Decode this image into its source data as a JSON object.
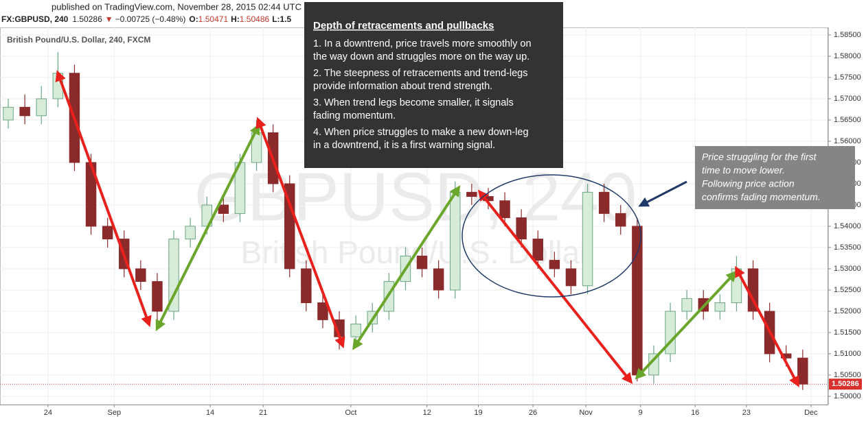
{
  "header": {
    "published": "published on TradingView.com, November 28, 2015 02:44 UTC",
    "symbol": "FX:GBPUSD, 240",
    "last": "1.50286",
    "change_arrow": "▼",
    "change": "−0.00725 (−0.48%)",
    "open_label": "O:",
    "open": "1.50471",
    "high_label": "H:",
    "high": "1.50486",
    "low_label": "L:1.5"
  },
  "chart_data": {
    "type": "candlestick",
    "title": "British Pound/U.S. Dollar, 240, FXCM",
    "watermark": "GBPUSD, 240",
    "watermark_subtitle": "British Pound/U.S. Dollar",
    "open": [
      1.565,
      1.568,
      1.566,
      1.57,
      1.576,
      1.555,
      1.54,
      1.537,
      1.53,
      1.527,
      1.52,
      1.537,
      1.54,
      1.545,
      1.543,
      1.555,
      1.562,
      1.55,
      1.53,
      1.522,
      1.518,
      1.514,
      1.517,
      1.52,
      1.527,
      1.533,
      1.53,
      1.525,
      1.548,
      1.547,
      1.546,
      1.542,
      1.537,
      1.532,
      1.53,
      1.526,
      1.548,
      1.543,
      1.54,
      1.505,
      1.51,
      1.52,
      1.523,
      1.52,
      1.522,
      1.53,
      1.52,
      1.51,
      1.509
    ],
    "high": [
      1.57,
      1.571,
      1.573,
      1.581,
      1.578,
      1.557,
      1.542,
      1.539,
      1.532,
      1.529,
      1.539,
      1.542,
      1.547,
      1.547,
      1.557,
      1.565,
      1.564,
      1.552,
      1.532,
      1.524,
      1.52,
      1.519,
      1.522,
      1.529,
      1.535,
      1.535,
      1.532,
      1.5505,
      1.55,
      1.549,
      1.548,
      1.544,
      1.539,
      1.534,
      1.532,
      1.55,
      1.55,
      1.545,
      1.542,
      1.512,
      1.522,
      1.525,
      1.525,
      1.524,
      1.533,
      1.532,
      1.522,
      1.512,
      1.511
    ],
    "low": [
      1.563,
      1.564,
      1.564,
      1.568,
      1.553,
      1.538,
      1.535,
      1.528,
      1.525,
      1.5165,
      1.518,
      1.535,
      1.538,
      1.541,
      1.541,
      1.553,
      1.548,
      1.528,
      1.52,
      1.516,
      1.511,
      1.512,
      1.515,
      1.518,
      1.525,
      1.528,
      1.523,
      1.523,
      1.545,
      1.544,
      1.54,
      1.535,
      1.53,
      1.528,
      1.524,
      1.524,
      1.541,
      1.538,
      1.5035,
      1.503,
      1.508,
      1.518,
      1.518,
      1.518,
      1.52,
      1.518,
      1.508,
      1.507,
      1.5015
    ],
    "close": [
      1.568,
      1.566,
      1.57,
      1.576,
      1.555,
      1.54,
      1.537,
      1.53,
      1.527,
      1.52,
      1.537,
      1.54,
      1.545,
      1.543,
      1.555,
      1.562,
      1.55,
      1.53,
      1.522,
      1.518,
      1.514,
      1.517,
      1.52,
      1.527,
      1.533,
      1.53,
      1.525,
      1.548,
      1.547,
      1.546,
      1.542,
      1.537,
      1.532,
      1.53,
      1.526,
      1.548,
      1.543,
      1.54,
      1.505,
      1.51,
      1.52,
      1.523,
      1.52,
      1.522,
      1.53,
      1.52,
      1.51,
      1.509,
      1.50286
    ],
    "up_color": "#6ba583",
    "down_color": "#8b2a2a",
    "xlim": [
      -0.5,
      49.5
    ],
    "xticks": [
      {
        "value": 2.4,
        "label": "24"
      },
      {
        "value": 6.4,
        "label": "Sep"
      },
      {
        "value": 12.2,
        "label": "14"
      },
      {
        "value": 15.4,
        "label": "21"
      },
      {
        "value": 20.7,
        "label": "Oct"
      },
      {
        "value": 25.3,
        "label": "12"
      },
      {
        "value": 28.4,
        "label": "19"
      },
      {
        "value": 31.7,
        "label": "26"
      },
      {
        "value": 34.9,
        "label": "Nov"
      },
      {
        "value": 38.2,
        "label": "9"
      },
      {
        "value": 41.5,
        "label": "16"
      },
      {
        "value": 44.6,
        "label": "23"
      },
      {
        "value": 48.5,
        "label": "Dec"
      }
    ],
    "ylim": [
      1.49806,
      1.58677
    ],
    "yticks": [
      {
        "value": 1.5,
        "label": "1.50000"
      },
      {
        "value": 1.505,
        "label": "1.50500"
      },
      {
        "value": 1.51,
        "label": "1.51000"
      },
      {
        "value": 1.515,
        "label": "1.51500"
      },
      {
        "value": 1.52,
        "label": "1.52000"
      },
      {
        "value": 1.525,
        "label": "1.52500"
      },
      {
        "value": 1.53,
        "label": "1.53000"
      },
      {
        "value": 1.535,
        "label": "1.53500"
      },
      {
        "value": 1.54,
        "label": "1.54000"
      },
      {
        "value": 1.545,
        "label": "1.54500"
      },
      {
        "value": 1.55,
        "label": "1.55000"
      },
      {
        "value": 1.555,
        "label": "1.55500"
      },
      {
        "value": 1.56,
        "label": "1.56000"
      },
      {
        "value": 1.565,
        "label": "1.56500"
      },
      {
        "value": 1.57,
        "label": "1.57000"
      },
      {
        "value": 1.575,
        "label": "1.57500"
      },
      {
        "value": 1.58,
        "label": "1.58000"
      },
      {
        "value": 1.585,
        "label": "1.58500"
      }
    ],
    "grid": true,
    "last_price": {
      "value": 1.50286,
      "label": "1.50286",
      "color": "#d9302c"
    },
    "arrows": [
      {
        "x0": 3.0,
        "y0": 1.576,
        "x1": 8.5,
        "y1": 1.517,
        "color": "#e8211d"
      },
      {
        "x0": 9.0,
        "y0": 1.516,
        "x1": 15.1,
        "y1": 1.5635,
        "color": "#6aa52c"
      },
      {
        "x0": 15.1,
        "y0": 1.565,
        "x1": 20.2,
        "y1": 1.512,
        "color": "#e8211d"
      },
      {
        "x0": 20.9,
        "y0": 1.5115,
        "x1": 27.2,
        "y1": 1.549,
        "color": "#6aa52c"
      },
      {
        "x0": 28.5,
        "y0": 1.548,
        "x1": 37.6,
        "y1": 1.5035,
        "color": "#e8211d"
      },
      {
        "x0": 38.0,
        "y0": 1.5045,
        "x1": 43.9,
        "y1": 1.529,
        "color": "#6aa52c"
      },
      {
        "x0": 44.0,
        "y0": 1.53,
        "x1": 47.7,
        "y1": 1.5028,
        "color": "#e8211d"
      }
    ],
    "annotations": {
      "box_title": "Depth of retracements and pullbacks",
      "box_items": [
        [
          "1. In a downtrend, price travels more smoothly on",
          "the way down and struggles more on the way up."
        ],
        [
          "2. The steepness of retracements and trend-legs",
          "provide information about trend strength."
        ],
        [
          "3. When trend legs become smaller, it signals",
          "fading momentum."
        ],
        [
          "4. When price struggles to make a new down-leg",
          "in a downtrend, it is a first warning signal."
        ]
      ],
      "note": [
        "Price struggling for the first",
        "time to move lower.",
        "Following price action",
        "confirms fading momentum."
      ]
    }
  }
}
